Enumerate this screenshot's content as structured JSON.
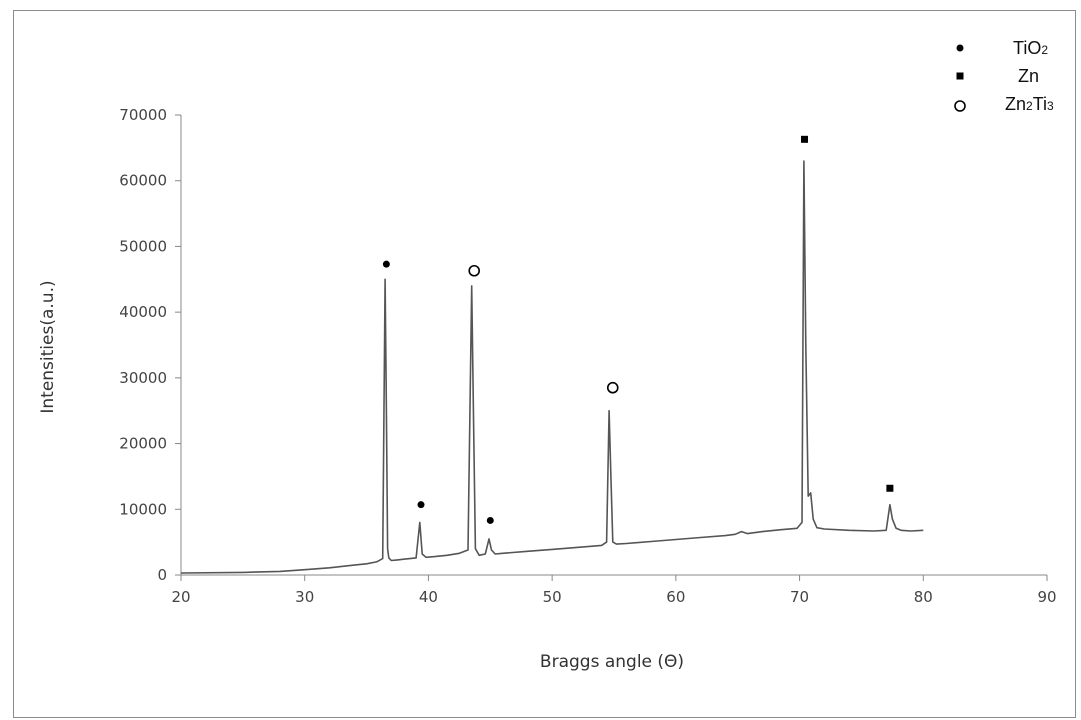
{
  "chart_data": {
    "type": "line",
    "title": "",
    "xlabel": "Braggs angle (Θ)",
    "ylabel": "Intensities(a.u.)",
    "xlim": [
      20,
      90
    ],
    "ylim": [
      0,
      70000
    ],
    "x_ticks": [
      20,
      30,
      40,
      50,
      60,
      70,
      80,
      90
    ],
    "y_ticks": [
      0,
      10000,
      20000,
      30000,
      40000,
      50000,
      60000,
      70000
    ],
    "grid": false,
    "legend_position": "top-right",
    "line_color": "#555555",
    "legend": [
      {
        "marker": "filled-circle",
        "label": "TiO2",
        "base": "TiO",
        "sub": "2"
      },
      {
        "marker": "filled-square",
        "label": "Zn",
        "base": "Zn",
        "sub": ""
      },
      {
        "marker": "open-circle",
        "label": "Zn2Ti3",
        "parts": [
          "Zn",
          "2",
          "Ti",
          "3"
        ]
      }
    ],
    "series": [
      {
        "x": [
          20,
          25,
          28,
          30,
          32,
          34,
          35,
          35.8,
          36.3,
          36.5,
          36.6,
          36.7,
          36.8,
          37.0,
          37.5,
          38,
          39.0,
          39.3,
          39.5,
          39.8,
          40.5,
          41.5,
          42.5,
          43.2,
          43.5,
          43.65,
          43.8,
          44.1,
          44.6,
          44.9,
          45.1,
          45.4,
          46,
          48,
          50,
          52,
          54,
          54.4,
          54.6,
          54.75,
          54.9,
          55.2,
          56,
          58,
          60,
          62,
          64,
          64.8,
          65.3,
          65.8,
          67,
          68.5,
          69.8,
          70.2,
          70.35,
          70.5,
          70.7,
          70.9,
          71.1,
          71.4,
          72,
          74,
          76,
          77,
          77.3,
          77.5,
          77.8,
          78.2,
          79,
          80
        ],
        "y": [
          300,
          400,
          550,
          800,
          1100,
          1500,
          1700,
          2000,
          2500,
          45000,
          25000,
          4000,
          2600,
          2200,
          2300,
          2400,
          2600,
          8000,
          3200,
          2700,
          2800,
          3000,
          3300,
          3800,
          44000,
          23000,
          4000,
          3000,
          3200,
          5500,
          3800,
          3200,
          3300,
          3600,
          3900,
          4200,
          4500,
          5000,
          25000,
          15000,
          5000,
          4700,
          4800,
          5100,
          5400,
          5700,
          6000,
          6200,
          6600,
          6300,
          6600,
          6900,
          7100,
          8000,
          63000,
          35000,
          12000,
          12500,
          8500,
          7200,
          7000,
          6800,
          6700,
          6800,
          10700,
          8500,
          7100,
          6800,
          6700,
          6800
        ]
      }
    ],
    "annotations": [
      {
        "marker": "filled-circle",
        "x": 36.6,
        "y": 47300
      },
      {
        "marker": "filled-circle",
        "x": 39.4,
        "y": 10700
      },
      {
        "marker": "open-circle",
        "x": 43.7,
        "y": 46300
      },
      {
        "marker": "filled-circle",
        "x": 45.0,
        "y": 8300
      },
      {
        "marker": "open-circle",
        "x": 54.9,
        "y": 28500
      },
      {
        "marker": "filled-square",
        "x": 70.4,
        "y": 66300
      },
      {
        "marker": "filled-square",
        "x": 77.3,
        "y": 13200
      }
    ]
  }
}
